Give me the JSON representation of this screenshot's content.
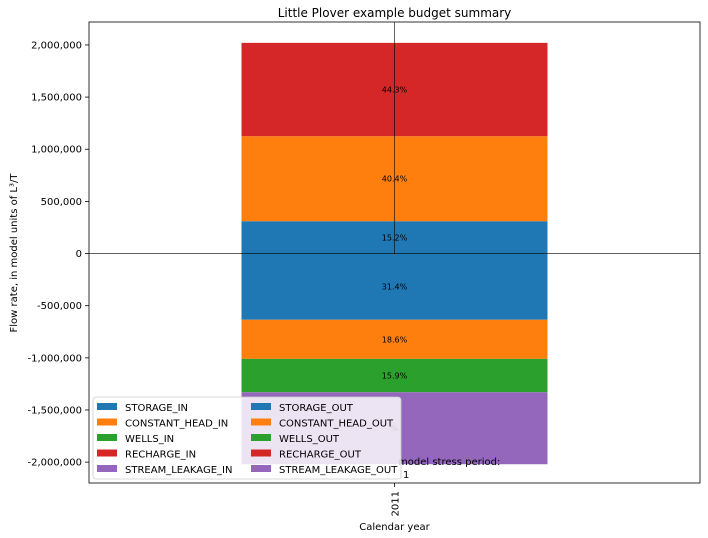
{
  "chart_data": {
    "type": "bar",
    "stacked": true,
    "title": "Little Plover example budget summary",
    "xlabel": "Calendar year",
    "ylabel": "Flow rate, in model units of L³/T",
    "categories": [
      "2011"
    ],
    "ylim": [
      -2200000,
      2220000
    ],
    "yticks": [
      2000000,
      1500000,
      1000000,
      500000,
      0,
      -500000,
      -1000000,
      -1500000,
      -2000000
    ],
    "ytick_labels": [
      "2,000,000",
      "1,500,000",
      "1,000,000",
      "500,000",
      "0",
      "-500,000",
      "-1,000,000",
      "-1,500,000",
      "-2,000,000"
    ],
    "grid": false,
    "inflows": [
      {
        "name": "STORAGE_IN",
        "value": 310000,
        "pct_label": "15.2%",
        "color": "#1f77b4"
      },
      {
        "name": "CONSTANT_HEAD_IN",
        "value": 815000,
        "pct_label": "40.4%",
        "color": "#ff7f0e"
      },
      {
        "name": "WELLS_IN",
        "value": 0,
        "pct_label": "",
        "color": "#2ca02c"
      },
      {
        "name": "RECHARGE_IN",
        "value": 895000,
        "pct_label": "44.3%",
        "color": "#d62728"
      },
      {
        "name": "STREAM_LEAKAGE_IN",
        "value": 0,
        "pct_label": "",
        "color": "#9467bd"
      }
    ],
    "outflows": [
      {
        "name": "STORAGE_OUT",
        "value": -635000,
        "pct_label": "31.4%",
        "color": "#1f77b4"
      },
      {
        "name": "CONSTANT_HEAD_OUT",
        "value": -375000,
        "pct_label": "18.6%",
        "color": "#ff7f0e"
      },
      {
        "name": "WELLS_OUT",
        "value": -320000,
        "pct_label": "15.9%",
        "color": "#2ca02c"
      },
      {
        "name": "RECHARGE_OUT",
        "value": 0,
        "pct_label": "",
        "color": "#d62728"
      },
      {
        "name": "STREAM_LEAKAGE_OUT",
        "value": -690000,
        "pct_label": "%",
        "color": "#9467bd"
      }
    ],
    "annotation": {
      "line1": "model stress period:",
      "line2": "1"
    },
    "legend": {
      "placement": "lower-left",
      "columns": 2,
      "entries": [
        {
          "name": "STORAGE_IN",
          "color": "#1f77b4"
        },
        {
          "name": "CONSTANT_HEAD_IN",
          "color": "#ff7f0e"
        },
        {
          "name": "WELLS_IN",
          "color": "#2ca02c"
        },
        {
          "name": "RECHARGE_IN",
          "color": "#d62728"
        },
        {
          "name": "STREAM_LEAKAGE_IN",
          "color": "#9467bd"
        },
        {
          "name": "STORAGE_OUT",
          "color": "#1f77b4"
        },
        {
          "name": "CONSTANT_HEAD_OUT",
          "color": "#ff7f0e"
        },
        {
          "name": "WELLS_OUT",
          "color": "#2ca02c"
        },
        {
          "name": "RECHARGE_OUT",
          "color": "#d62728"
        },
        {
          "name": "STREAM_LEAKAGE_OUT",
          "color": "#9467bd"
        }
      ]
    }
  }
}
